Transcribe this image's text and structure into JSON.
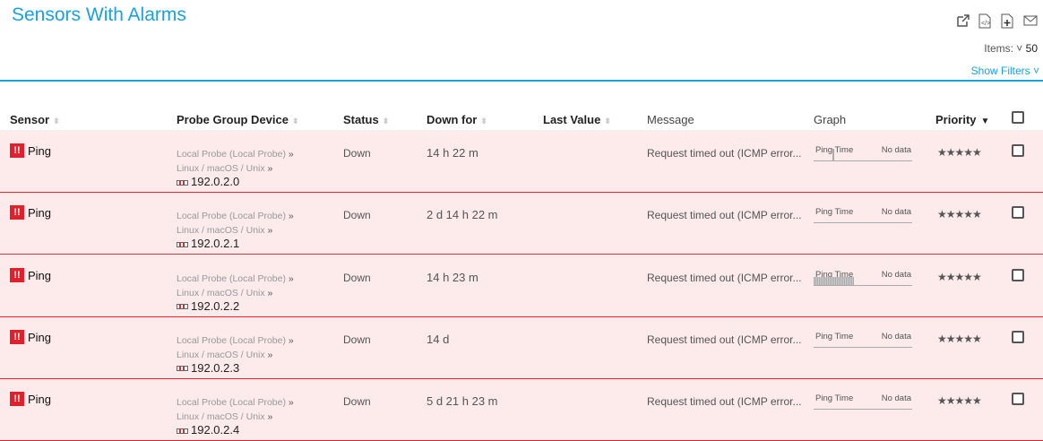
{
  "title": "Sensors With Alarms",
  "toolbar": {
    "icons": [
      "external-link-icon",
      "code-file-icon",
      "add-file-icon",
      "mail-icon"
    ]
  },
  "items": {
    "label": "Items:",
    "value": "50"
  },
  "show_filters": "Show Filters ˅",
  "columns": [
    "Sensor",
    "Probe Group Device",
    "Status",
    "Down for",
    "Last Value",
    "Message",
    "Graph",
    "Priority"
  ],
  "colors": {
    "accent": "#1aa2dc",
    "alarm": "#e0202a",
    "row_bg": "#fdeaeb"
  },
  "rows": [
    {
      "sensor": "Ping",
      "probe": "Local Probe (Local Probe)",
      "group": "Linux / macOS / Unix",
      "device": "192.0.2.0",
      "status": "Down",
      "down_for": "14 h 22 m",
      "last_value": "",
      "message": "Request timed out (ICMP error...",
      "graph_label": "Ping Time",
      "graph_value": "No data",
      "priority": "★★★★★"
    },
    {
      "sensor": "Ping",
      "probe": "Local Probe (Local Probe)",
      "group": "Linux / macOS / Unix",
      "device": "192.0.2.1",
      "status": "Down",
      "down_for": "2 d 14 h 22 m",
      "last_value": "",
      "message": "Request timed out (ICMP error...",
      "graph_label": "Ping Time",
      "graph_value": "No data",
      "priority": "★★★★★"
    },
    {
      "sensor": "Ping",
      "probe": "Local Probe (Local Probe)",
      "group": "Linux / macOS / Unix",
      "device": "192.0.2.2",
      "status": "Down",
      "down_for": "14 h 23 m",
      "last_value": "",
      "message": "Request timed out (ICMP error...",
      "graph_label": "Ping Time",
      "graph_value": "No data",
      "priority": "★★★★★"
    },
    {
      "sensor": "Ping",
      "probe": "Local Probe (Local Probe)",
      "group": "Linux / macOS / Unix",
      "device": "192.0.2.3",
      "status": "Down",
      "down_for": "14 d",
      "last_value": "",
      "message": "Request timed out (ICMP error...",
      "graph_label": "Ping Time",
      "graph_value": "No data",
      "priority": "★★★★★"
    },
    {
      "sensor": "Ping",
      "probe": "Local Probe (Local Probe)",
      "group": "Linux / macOS / Unix",
      "device": "192.0.2.4",
      "status": "Down",
      "down_for": "5 d 21 h 23 m",
      "last_value": "",
      "message": "Request timed out (ICMP error...",
      "graph_label": "Ping Time",
      "graph_value": "No data",
      "priority": "★★★★★"
    }
  ]
}
